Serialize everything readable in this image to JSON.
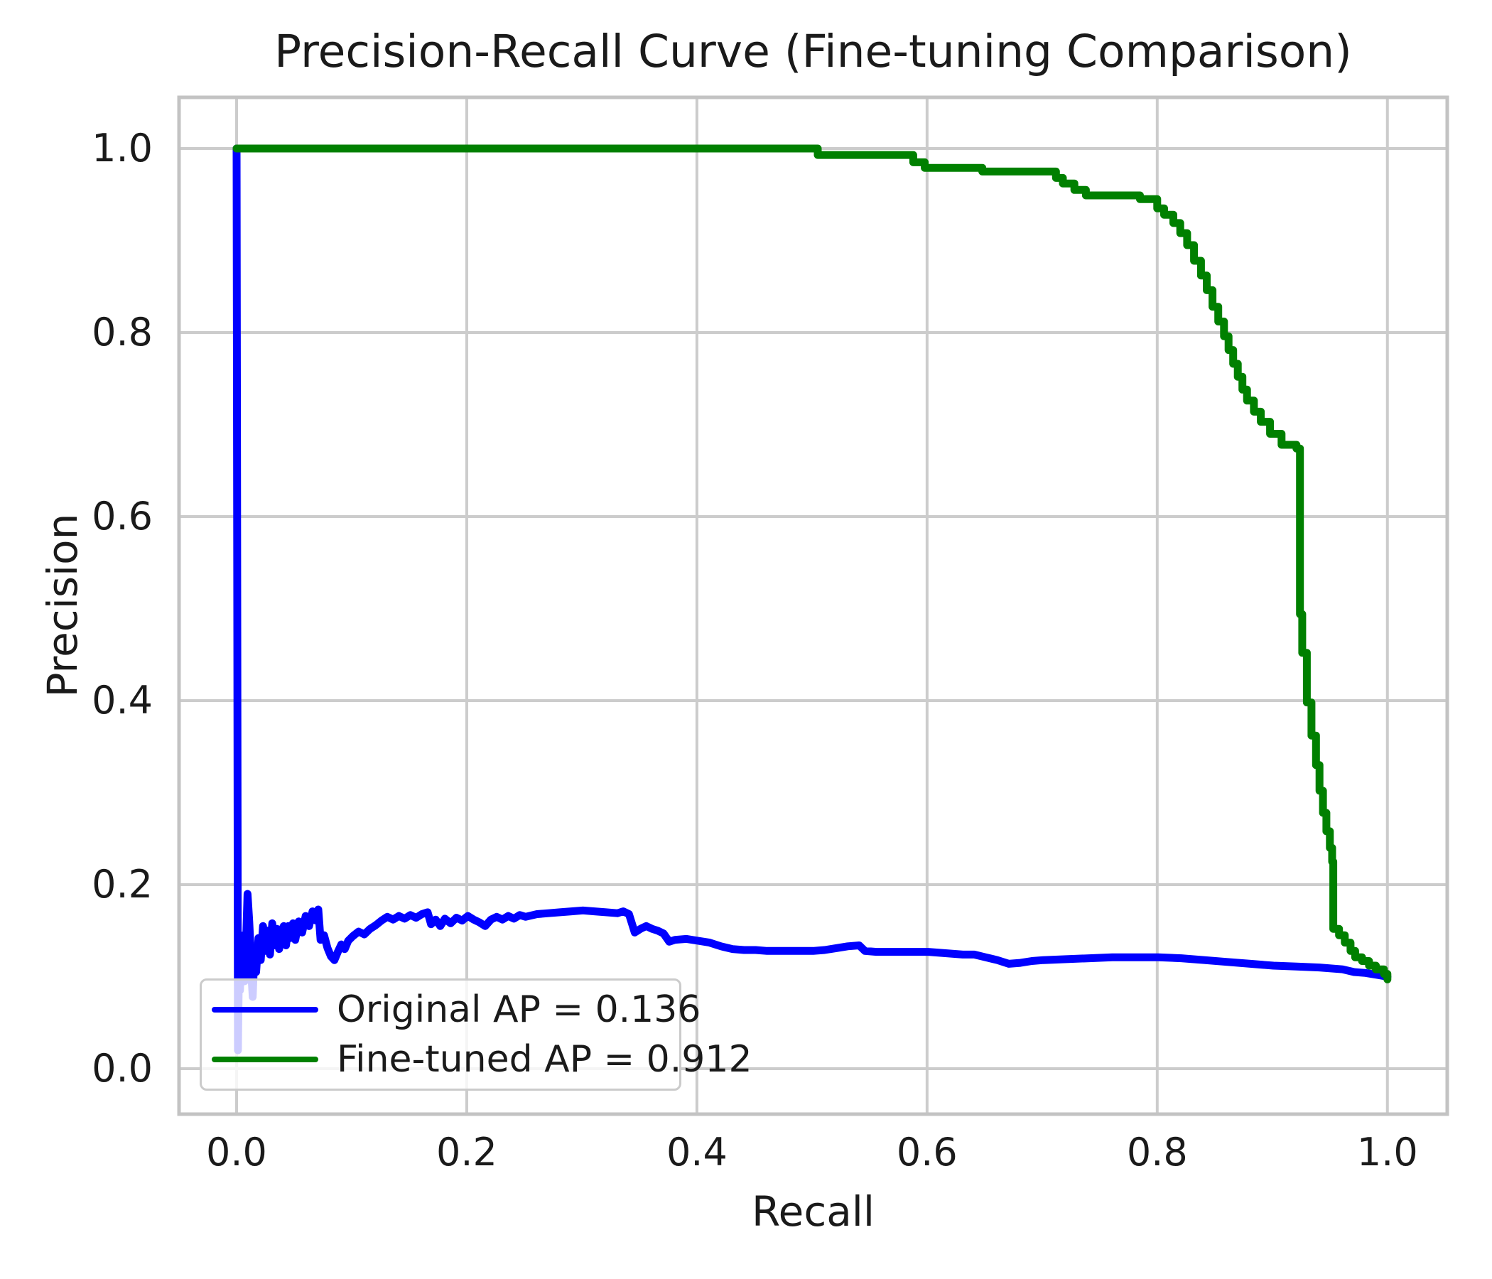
{
  "figure": {
    "title": "Precision-Recall Curve (Fine-tuning Comparison)",
    "xlabel": "Recall",
    "ylabel": "Precision"
  },
  "axes": {
    "x_ticks": {
      "values": [
        0.0,
        0.2,
        0.4,
        0.6,
        0.8,
        1.0
      ],
      "labels": [
        "0.0",
        "0.2",
        "0.4",
        "0.6",
        "0.8",
        "1.0"
      ]
    },
    "y_ticks": {
      "values": [
        0.0,
        0.2,
        0.4,
        0.6,
        0.8,
        1.0
      ],
      "labels": [
        "0.0",
        "0.2",
        "0.4",
        "0.6",
        "0.8",
        "1.0"
      ]
    }
  },
  "legend": {
    "entries": [
      {
        "label": "Original AP = 0.136",
        "color": "#0000ff"
      },
      {
        "label": "Fine-tuned AP = 0.912",
        "color": "#008000"
      }
    ]
  },
  "colors": {
    "original_line": "#0000ff",
    "finetuned_line": "#008000",
    "grid": "#cccccc",
    "spine": "#c3c3c3",
    "text": "#1a1a1a",
    "background": "#ffffff"
  },
  "chart_data": {
    "type": "line",
    "title": "Precision-Recall Curve (Fine-tuning Comparison)",
    "xlabel": "Recall",
    "ylabel": "Precision",
    "xlim": [
      -0.05,
      1.052
    ],
    "ylim": [
      -0.0494,
      1.0556
    ],
    "grid": true,
    "legend_position": "lower left",
    "series": [
      {
        "name": "Original AP = 0.136",
        "color": "#0000ff",
        "ap": 0.136,
        "points": [
          [
            0.0,
            1.0
          ],
          [
            0.0012,
            0.02
          ],
          [
            0.002,
            0.105
          ],
          [
            0.003,
            0.085
          ],
          [
            0.004,
            0.13
          ],
          [
            0.005,
            0.1
          ],
          [
            0.006,
            0.145
          ],
          [
            0.007,
            0.095
          ],
          [
            0.008,
            0.125
          ],
          [
            0.0095,
            0.19
          ],
          [
            0.011,
            0.16
          ],
          [
            0.012,
            0.135
          ],
          [
            0.013,
            0.1
          ],
          [
            0.014,
            0.078
          ],
          [
            0.0155,
            0.128
          ],
          [
            0.017,
            0.105
          ],
          [
            0.019,
            0.142
          ],
          [
            0.021,
            0.118
          ],
          [
            0.023,
            0.155
          ],
          [
            0.025,
            0.128
          ],
          [
            0.027,
            0.15
          ],
          [
            0.029,
            0.124
          ],
          [
            0.031,
            0.158
          ],
          [
            0.033,
            0.134
          ],
          [
            0.035,
            0.152
          ],
          [
            0.037,
            0.13
          ],
          [
            0.039,
            0.15
          ],
          [
            0.041,
            0.155
          ],
          [
            0.043,
            0.134
          ],
          [
            0.045,
            0.155
          ],
          [
            0.047,
            0.142
          ],
          [
            0.049,
            0.158
          ],
          [
            0.051,
            0.14
          ],
          [
            0.054,
            0.16
          ],
          [
            0.057,
            0.148
          ],
          [
            0.06,
            0.166
          ],
          [
            0.063,
            0.155
          ],
          [
            0.066,
            0.171
          ],
          [
            0.069,
            0.161
          ],
          [
            0.071,
            0.173
          ],
          [
            0.073,
            0.14
          ],
          [
            0.076,
            0.145
          ],
          [
            0.079,
            0.131
          ],
          [
            0.082,
            0.122
          ],
          [
            0.085,
            0.118
          ],
          [
            0.088,
            0.127
          ],
          [
            0.091,
            0.135
          ],
          [
            0.094,
            0.13
          ],
          [
            0.097,
            0.139
          ],
          [
            0.101,
            0.144
          ],
          [
            0.106,
            0.149
          ],
          [
            0.111,
            0.146
          ],
          [
            0.116,
            0.152
          ],
          [
            0.121,
            0.156
          ],
          [
            0.126,
            0.161
          ],
          [
            0.131,
            0.165
          ],
          [
            0.136,
            0.162
          ],
          [
            0.141,
            0.166
          ],
          [
            0.146,
            0.163
          ],
          [
            0.151,
            0.167
          ],
          [
            0.156,
            0.164
          ],
          [
            0.161,
            0.168
          ],
          [
            0.166,
            0.17
          ],
          [
            0.169,
            0.157
          ],
          [
            0.173,
            0.162
          ],
          [
            0.177,
            0.155
          ],
          [
            0.181,
            0.163
          ],
          [
            0.186,
            0.158
          ],
          [
            0.191,
            0.164
          ],
          [
            0.196,
            0.161
          ],
          [
            0.201,
            0.166
          ],
          [
            0.206,
            0.162
          ],
          [
            0.211,
            0.159
          ],
          [
            0.216,
            0.155
          ],
          [
            0.221,
            0.162
          ],
          [
            0.226,
            0.165
          ],
          [
            0.231,
            0.162
          ],
          [
            0.236,
            0.166
          ],
          [
            0.241,
            0.163
          ],
          [
            0.246,
            0.167
          ],
          [
            0.251,
            0.165
          ],
          [
            0.261,
            0.168
          ],
          [
            0.271,
            0.169
          ],
          [
            0.281,
            0.17
          ],
          [
            0.291,
            0.171
          ],
          [
            0.301,
            0.172
          ],
          [
            0.311,
            0.171
          ],
          [
            0.321,
            0.17
          ],
          [
            0.331,
            0.169
          ],
          [
            0.336,
            0.171
          ],
          [
            0.341,
            0.168
          ],
          [
            0.346,
            0.148
          ],
          [
            0.351,
            0.152
          ],
          [
            0.356,
            0.155
          ],
          [
            0.361,
            0.152
          ],
          [
            0.366,
            0.15
          ],
          [
            0.371,
            0.147
          ],
          [
            0.376,
            0.138
          ],
          [
            0.381,
            0.14
          ],
          [
            0.391,
            0.141
          ],
          [
            0.401,
            0.139
          ],
          [
            0.411,
            0.137
          ],
          [
            0.421,
            0.133
          ],
          [
            0.431,
            0.13
          ],
          [
            0.441,
            0.129
          ],
          [
            0.451,
            0.129
          ],
          [
            0.461,
            0.128
          ],
          [
            0.471,
            0.128
          ],
          [
            0.481,
            0.128
          ],
          [
            0.491,
            0.128
          ],
          [
            0.501,
            0.128
          ],
          [
            0.511,
            0.129
          ],
          [
            0.521,
            0.131
          ],
          [
            0.531,
            0.133
          ],
          [
            0.541,
            0.134
          ],
          [
            0.546,
            0.128
          ],
          [
            0.556,
            0.127
          ],
          [
            0.571,
            0.127
          ],
          [
            0.591,
            0.127
          ],
          [
            0.601,
            0.127
          ],
          [
            0.611,
            0.126
          ],
          [
            0.621,
            0.125
          ],
          [
            0.631,
            0.124
          ],
          [
            0.641,
            0.124
          ],
          [
            0.651,
            0.121
          ],
          [
            0.661,
            0.118
          ],
          [
            0.671,
            0.114
          ],
          [
            0.681,
            0.115
          ],
          [
            0.691,
            0.117
          ],
          [
            0.701,
            0.118
          ],
          [
            0.721,
            0.119
          ],
          [
            0.741,
            0.12
          ],
          [
            0.761,
            0.121
          ],
          [
            0.781,
            0.121
          ],
          [
            0.801,
            0.121
          ],
          [
            0.821,
            0.12
          ],
          [
            0.841,
            0.118
          ],
          [
            0.861,
            0.116
          ],
          [
            0.881,
            0.114
          ],
          [
            0.901,
            0.112
          ],
          [
            0.921,
            0.111
          ],
          [
            0.941,
            0.11
          ],
          [
            0.961,
            0.108
          ],
          [
            0.971,
            0.105
          ],
          [
            0.981,
            0.104
          ],
          [
            0.991,
            0.102
          ],
          [
            1.0,
            0.1
          ]
        ]
      },
      {
        "name": "Fine-tuned AP = 0.912",
        "color": "#008000",
        "ap": 0.912,
        "points": [
          [
            0.0,
            1.0
          ],
          [
            0.505,
            1.0
          ],
          [
            0.505,
            0.993
          ],
          [
            0.588,
            0.993
          ],
          [
            0.588,
            0.985
          ],
          [
            0.598,
            0.985
          ],
          [
            0.598,
            0.979
          ],
          [
            0.648,
            0.979
          ],
          [
            0.648,
            0.975
          ],
          [
            0.712,
            0.975
          ],
          [
            0.712,
            0.968
          ],
          [
            0.718,
            0.968
          ],
          [
            0.718,
            0.962
          ],
          [
            0.728,
            0.962
          ],
          [
            0.728,
            0.955
          ],
          [
            0.738,
            0.955
          ],
          [
            0.738,
            0.949
          ],
          [
            0.785,
            0.949
          ],
          [
            0.785,
            0.945
          ],
          [
            0.8,
            0.945
          ],
          [
            0.8,
            0.935
          ],
          [
            0.806,
            0.935
          ],
          [
            0.806,
            0.928
          ],
          [
            0.814,
            0.928
          ],
          [
            0.814,
            0.919
          ],
          [
            0.82,
            0.919
          ],
          [
            0.82,
            0.908
          ],
          [
            0.826,
            0.908
          ],
          [
            0.826,
            0.895
          ],
          [
            0.832,
            0.895
          ],
          [
            0.832,
            0.878
          ],
          [
            0.838,
            0.878
          ],
          [
            0.838,
            0.862
          ],
          [
            0.843,
            0.862
          ],
          [
            0.843,
            0.846
          ],
          [
            0.848,
            0.846
          ],
          [
            0.848,
            0.828
          ],
          [
            0.853,
            0.828
          ],
          [
            0.853,
            0.812
          ],
          [
            0.858,
            0.812
          ],
          [
            0.858,
            0.796
          ],
          [
            0.862,
            0.796
          ],
          [
            0.862,
            0.781
          ],
          [
            0.866,
            0.781
          ],
          [
            0.866,
            0.766
          ],
          [
            0.87,
            0.766
          ],
          [
            0.87,
            0.752
          ],
          [
            0.874,
            0.752
          ],
          [
            0.874,
            0.738
          ],
          [
            0.878,
            0.738
          ],
          [
            0.878,
            0.726
          ],
          [
            0.884,
            0.726
          ],
          [
            0.884,
            0.714
          ],
          [
            0.89,
            0.714
          ],
          [
            0.89,
            0.703
          ],
          [
            0.898,
            0.703
          ],
          [
            0.898,
            0.69
          ],
          [
            0.908,
            0.69
          ],
          [
            0.908,
            0.678
          ],
          [
            0.921,
            0.678
          ],
          [
            0.921,
            0.674
          ],
          [
            0.924,
            0.674
          ],
          [
            0.924,
            0.494
          ],
          [
            0.926,
            0.494
          ],
          [
            0.926,
            0.452
          ],
          [
            0.93,
            0.452
          ],
          [
            0.93,
            0.398
          ],
          [
            0.934,
            0.398
          ],
          [
            0.934,
            0.362
          ],
          [
            0.938,
            0.362
          ],
          [
            0.938,
            0.33
          ],
          [
            0.941,
            0.33
          ],
          [
            0.941,
            0.302
          ],
          [
            0.944,
            0.302
          ],
          [
            0.944,
            0.278
          ],
          [
            0.947,
            0.278
          ],
          [
            0.947,
            0.258
          ],
          [
            0.95,
            0.258
          ],
          [
            0.95,
            0.24
          ],
          [
            0.952,
            0.24
          ],
          [
            0.952,
            0.225
          ],
          [
            0.953,
            0.225
          ],
          [
            0.953,
            0.152
          ],
          [
            0.958,
            0.152
          ],
          [
            0.958,
            0.145
          ],
          [
            0.963,
            0.145
          ],
          [
            0.963,
            0.137
          ],
          [
            0.968,
            0.137
          ],
          [
            0.968,
            0.128
          ],
          [
            0.972,
            0.128
          ],
          [
            0.972,
            0.121
          ],
          [
            0.978,
            0.121
          ],
          [
            0.978,
            0.117
          ],
          [
            0.984,
            0.117
          ],
          [
            0.984,
            0.112
          ],
          [
            0.99,
            0.112
          ],
          [
            0.99,
            0.108
          ],
          [
            0.997,
            0.108
          ],
          [
            0.997,
            0.103
          ],
          [
            1.0,
            0.103
          ],
          [
            1.0,
            0.097
          ]
        ]
      }
    ]
  }
}
